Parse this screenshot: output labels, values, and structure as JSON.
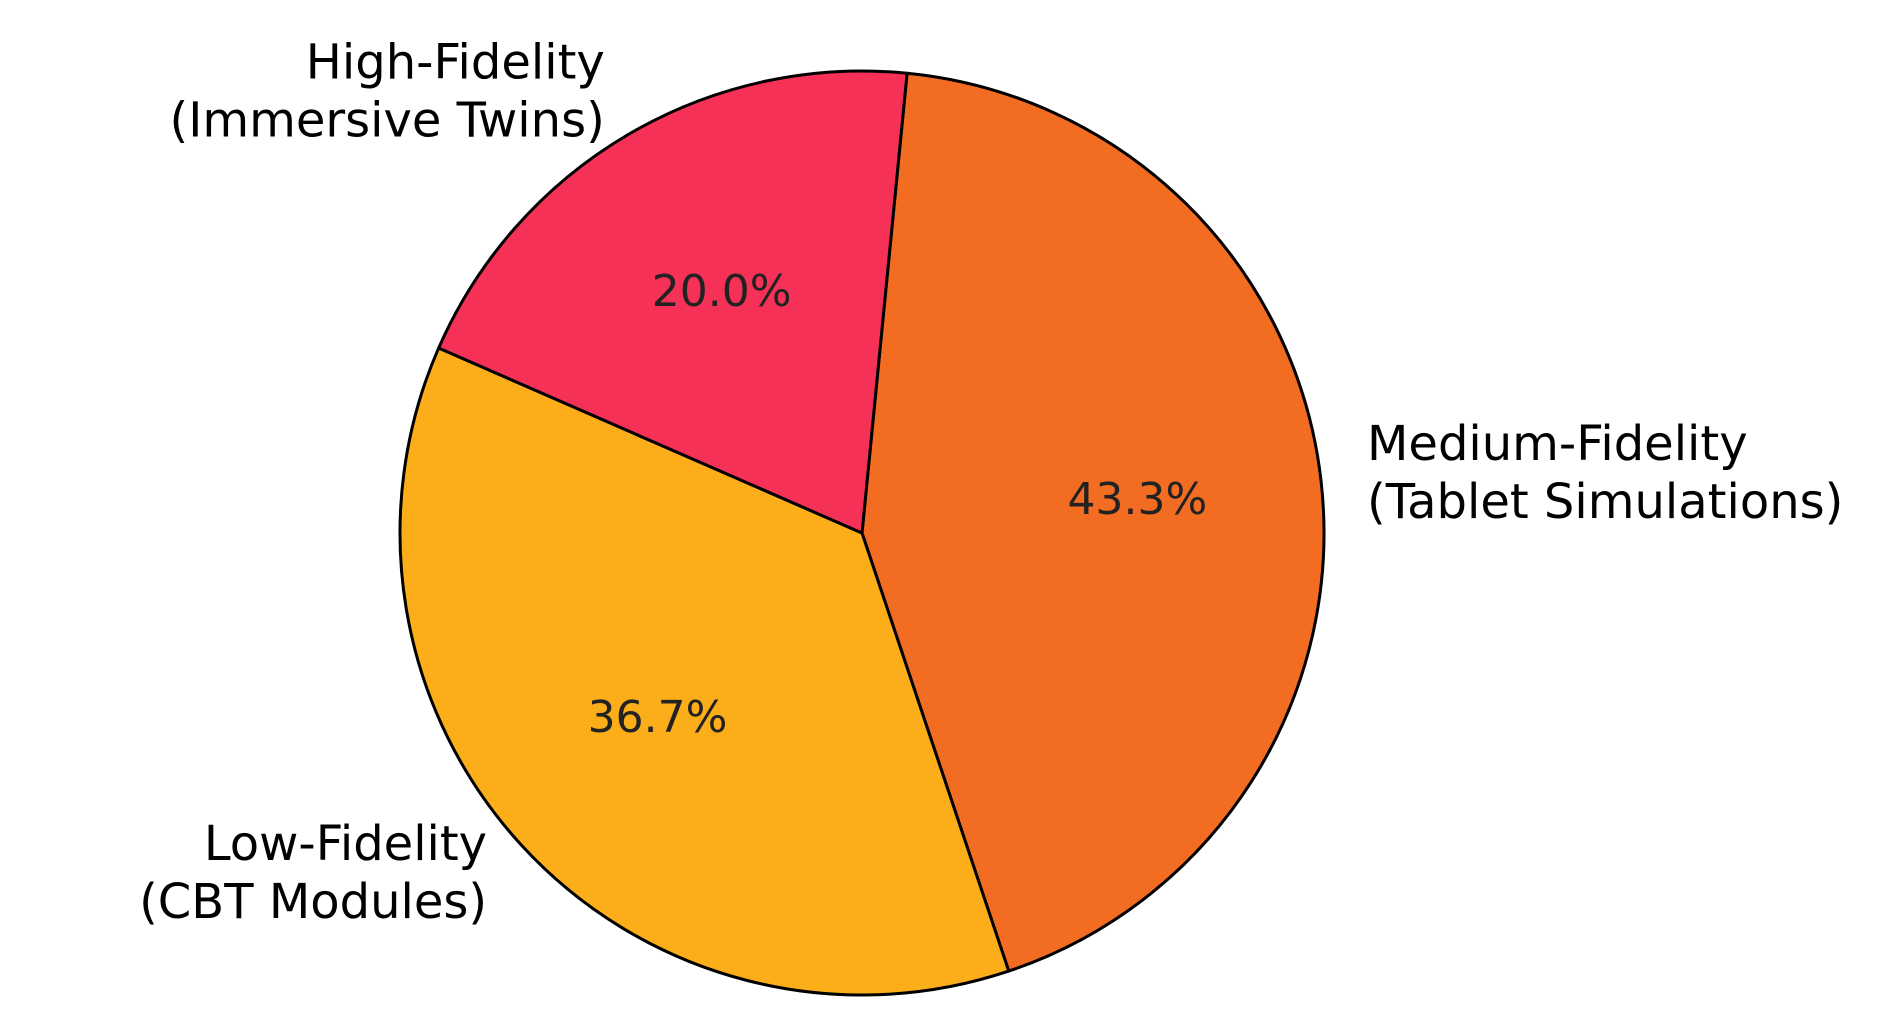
{
  "chart_data": {
    "type": "pie",
    "slices": [
      {
        "label_lines": [
          "Medium-Fidelity",
          "(Tablet Simulations)"
        ],
        "value": 43.3,
        "pct_label": "43.3%",
        "color": "#f26c22"
      },
      {
        "label_lines": [
          "Low-Fidelity",
          "(CBT Modules)"
        ],
        "value": 36.7,
        "pct_label": "36.7%",
        "color": "#fbae1a"
      },
      {
        "label_lines": [
          "High-Fidelity",
          "(Immersive Twins)"
        ],
        "value": 20.0,
        "pct_label": "20.0%",
        "color": "#f53157"
      }
    ],
    "edge_color": "#000000"
  }
}
